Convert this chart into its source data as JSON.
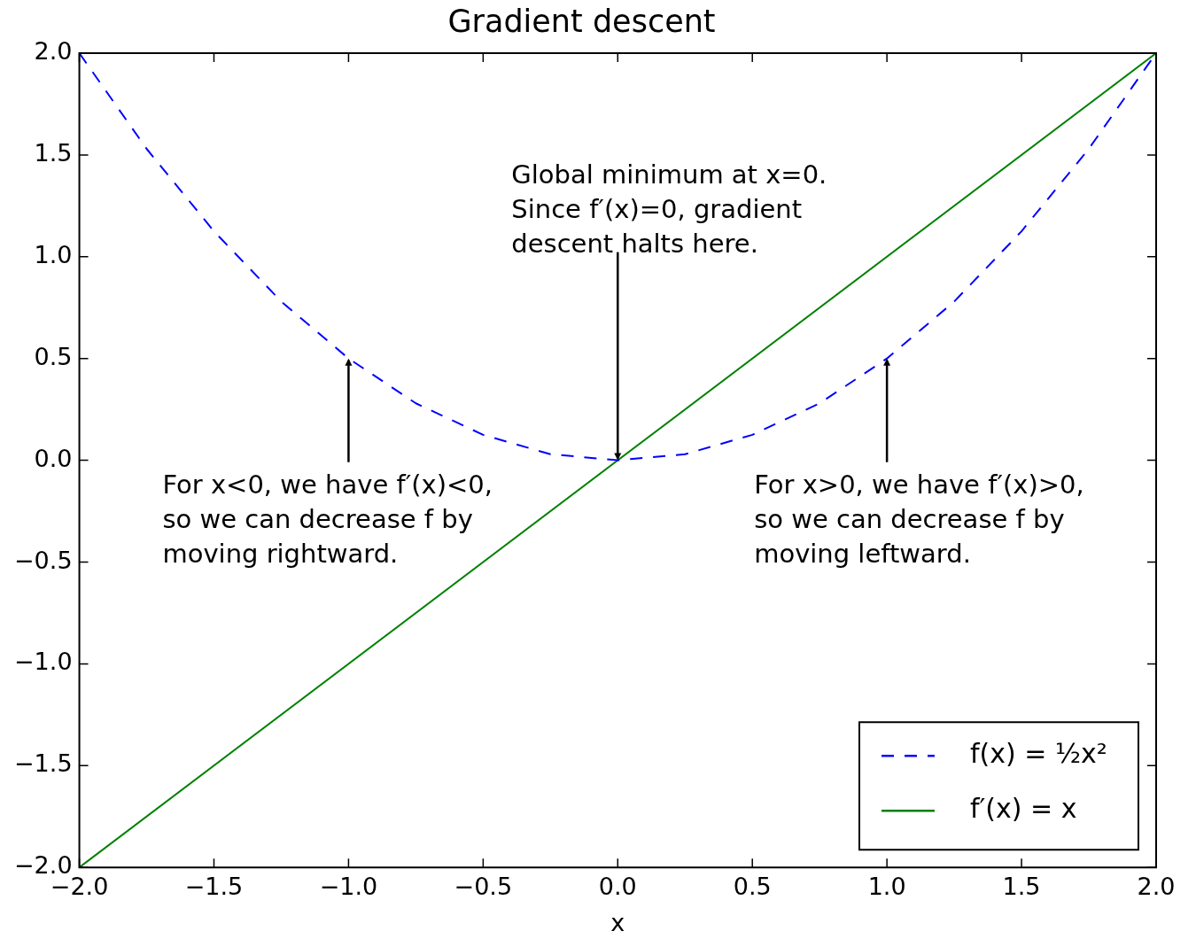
{
  "chart_data": {
    "type": "line",
    "title": "Gradient descent",
    "xlabel": "x",
    "series": [
      {
        "name": "f(x) = ½x²",
        "color": "#0000ff",
        "line_style": "dashed",
        "x": [
          -2,
          -1.75,
          -1.5,
          -1.25,
          -1,
          -0.75,
          -0.5,
          -0.25,
          0,
          0.25,
          0.5,
          0.75,
          1,
          1.25,
          1.5,
          1.75,
          2
        ],
        "values": [
          2,
          1.53,
          1.125,
          0.78,
          0.5,
          0.28,
          0.125,
          0.03,
          0,
          0.03,
          0.125,
          0.28,
          0.5,
          0.78,
          1.125,
          1.53,
          2
        ]
      },
      {
        "name": "f′(x) = x",
        "color": "#008000",
        "line_style": "solid",
        "x": [
          -2,
          2
        ],
        "values": [
          -2,
          2
        ]
      }
    ],
    "xlim": [
      -2,
      2
    ],
    "ylim": [
      -2,
      2
    ],
    "xticks": [
      {
        "value": -2,
        "label": "−2.0"
      },
      {
        "value": -1.5,
        "label": "−1.5"
      },
      {
        "value": -1,
        "label": "−1.0"
      },
      {
        "value": -0.5,
        "label": "−0.5"
      },
      {
        "value": 0,
        "label": "0.0"
      },
      {
        "value": 0.5,
        "label": "0.5"
      },
      {
        "value": 1,
        "label": "1.0"
      },
      {
        "value": 1.5,
        "label": "1.5"
      },
      {
        "value": 2,
        "label": "2.0"
      }
    ],
    "yticks": [
      {
        "value": -2,
        "label": "−2.0"
      },
      {
        "value": -1.5,
        "label": "−1.5"
      },
      {
        "value": -1,
        "label": "−1.0"
      },
      {
        "value": -0.5,
        "label": "−0.5"
      },
      {
        "value": 0,
        "label": "0.0"
      },
      {
        "value": 0.5,
        "label": "0.5"
      },
      {
        "value": 1,
        "label": "1.0"
      },
      {
        "value": 1.5,
        "label": "1.5"
      },
      {
        "value": 2,
        "label": "2.0"
      }
    ],
    "grid": false,
    "legend": "bottom right",
    "marker": "none",
    "annotations": [
      {
        "text": "For x<0, we have f′(x)<0,\nso we can decrease f by\nmoving rightward.",
        "x": -1,
        "y": 0.5
      },
      {
        "text": "Global minimum at x=0.\nSince f′(x)=0, gradient\ndescent halts here.",
        "x": 0,
        "y": 0
      },
      {
        "text": "For x>0, we have f′(x)>0,\nso we can decrease f by\nmoving leftward.",
        "x": 1,
        "y": 0.5
      }
    ]
  }
}
